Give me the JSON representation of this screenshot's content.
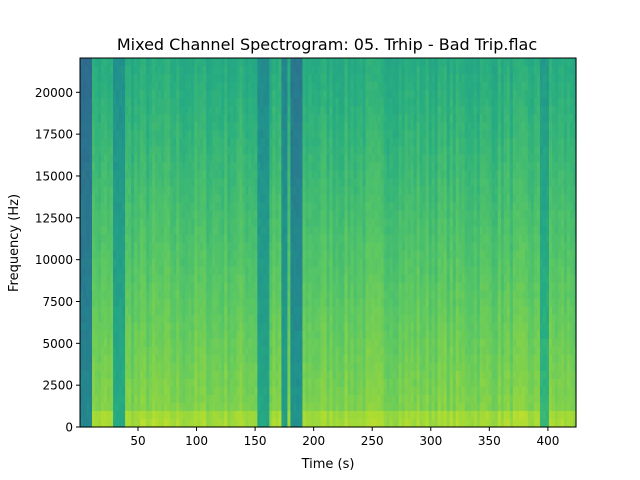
{
  "chart_data": {
    "type": "heatmap",
    "title": "Mixed Channel Spectrogram: 05. Trhip - Bad Trip.flac",
    "xlabel": "Time (s)",
    "ylabel": "Frequency (Hz)",
    "xlim": [
      0.5,
      424
    ],
    "ylim": [
      0,
      22050
    ],
    "x_ticks": [
      50,
      100,
      150,
      200,
      250,
      300,
      350,
      400
    ],
    "y_ticks": [
      0,
      2500,
      5000,
      7500,
      10000,
      12500,
      15000,
      17500,
      20000
    ],
    "x_tick_labels": [
      "50",
      "100",
      "150",
      "200",
      "250",
      "300",
      "350",
      "400"
    ],
    "y_tick_labels": [
      "0",
      "2500",
      "5000",
      "7500",
      "10000",
      "12500",
      "15000",
      "17500",
      "20000"
    ],
    "colormap": "viridis",
    "dark_regions_s": [
      {
        "from": 0,
        "to": 12,
        "level": 0.35
      },
      {
        "from": 28,
        "to": 38,
        "level": 0.5
      },
      {
        "from": 153,
        "to": 161,
        "level": 0.48
      },
      {
        "from": 172,
        "to": 178,
        "level": 0.45
      },
      {
        "from": 180,
        "to": 190,
        "level": 0.4
      },
      {
        "from": 393,
        "to": 400,
        "level": 0.55
      }
    ]
  }
}
